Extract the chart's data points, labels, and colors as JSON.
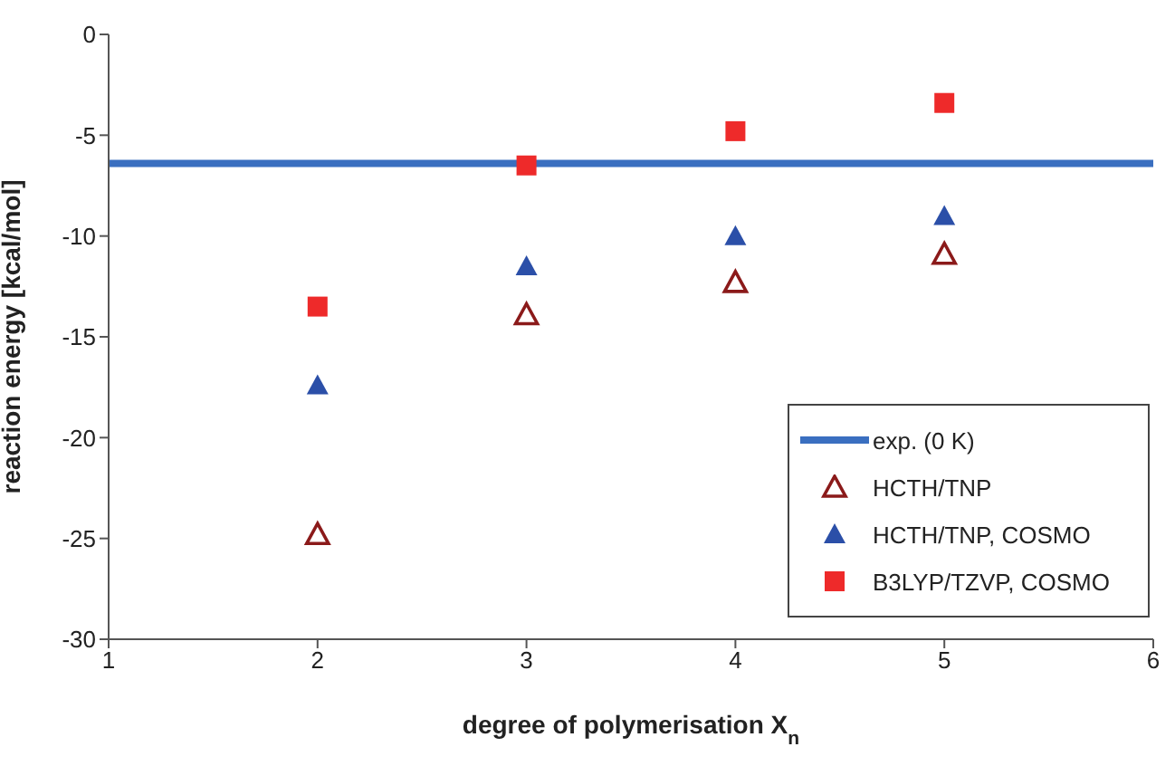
{
  "chart_data": {
    "type": "scatter",
    "xlabel": "degree of polymerisation X$_{n}$",
    "ylabel": "reaction energy [kcal/mol]",
    "x": [
      2,
      3,
      4,
      5
    ],
    "series": [
      {
        "name": "HCTH/TNP",
        "color": "#8b1a1a",
        "marker": "triangle-open",
        "values": [
          -24.8,
          -13.9,
          -12.3,
          -10.9
        ]
      },
      {
        "name": "HCTH/TNP, COSMO",
        "color": "#2b4fa8",
        "marker": "triangle",
        "values": [
          -17.4,
          -11.5,
          -10.0,
          -9.0
        ]
      },
      {
        "name": "B3LYP/TZVP, COSMO",
        "color": "#ee2a2a",
        "marker": "square",
        "values": [
          -13.5,
          -6.5,
          -4.8,
          -3.4
        ]
      }
    ],
    "ref_lines": [
      {
        "axis": "y",
        "value": -6.4,
        "label": "exp. (0 K)",
        "color": "#3a6fc0"
      }
    ],
    "xlim": [
      1,
      6
    ],
    "xticks": [
      1,
      2,
      3,
      4,
      5,
      6
    ],
    "ylim": [
      -30,
      0
    ],
    "yticks": [
      -30,
      -25,
      -20,
      -15,
      -10,
      -5,
      0
    ],
    "legend": "bottom right"
  }
}
